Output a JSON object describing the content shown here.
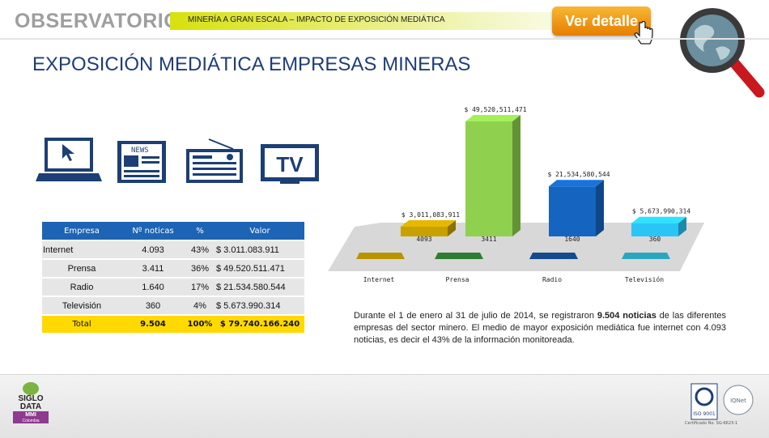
{
  "header": {
    "brand": "OBSERVATORIO",
    "subtitle": "MINERÍA A GRAN ESCALA – IMPACTO DE EXPOSICIÓN MEDIÁTICA",
    "detail_button": "Ver detalle"
  },
  "page_title": "EXPOSICIÓN MEDIÁTICA EMPRESAS MINERAS",
  "icons": [
    "laptop-icon",
    "newspaper-icon",
    "radio-icon",
    "tv-icon",
    "globe-magnifier-icon"
  ],
  "icon_labels": {
    "news": "NEWS",
    "tv": "TV"
  },
  "table": {
    "headers": [
      "Empresa",
      "Nº noticas",
      "%",
      "Valor"
    ],
    "rows": [
      {
        "empresa": "Internet",
        "noticias": "4.093",
        "pct": "43%",
        "valor": "$ 3.011.083.911"
      },
      {
        "empresa": "Prensa",
        "noticias": "3.411",
        "pct": "36%",
        "valor": "$ 49.520.511.471"
      },
      {
        "empresa": "Radio",
        "noticias": "1.640",
        "pct": "17%",
        "valor": "$ 21.534.580.544"
      },
      {
        "empresa": "Televisión",
        "noticias": "360",
        "pct": "4%",
        "valor": "$ 5.673.990.314"
      }
    ],
    "total": {
      "empresa": "Total",
      "noticias": "9.504",
      "pct": "100%",
      "valor": "$ 79.740.166.240"
    }
  },
  "chart_data": {
    "type": "bar",
    "categories": [
      "Internet",
      "Prensa",
      "Radio",
      "Televisión"
    ],
    "values": [
      3011083911,
      49520511471,
      21534580544,
      5673990314
    ],
    "value_labels": [
      "$ 3,011,083,911",
      "$ 49,520,511,471",
      "$ 21,534,580,544",
      "$ 5,673,990,314"
    ],
    "count_labels": [
      "4093",
      "3411",
      "1640",
      "360"
    ],
    "colors": [
      "#c8a000",
      "#8fd14f",
      "#1565c0",
      "#29c5f6"
    ],
    "base_colors": [
      "#b89400",
      "#2e7d32",
      "#154a8c",
      "#2aa7bf"
    ],
    "title": "",
    "xlabel": "",
    "ylabel": "",
    "grid": false
  },
  "summary": {
    "part1": "Durante el 1 de enero al 31 de julio de 2014, se registraron ",
    "highlight": "9.504 noticias",
    "part2": " de las diferentes empresas del sector minero. El medio de mayor exposición mediática fue internet con 4.093 noticias, es decir el 43% de la información monitoreada."
  },
  "footer": {
    "logo_lines": [
      "SIGLO",
      "DATA",
      "MMI",
      "Colombia"
    ],
    "cert": [
      "ISO 9001",
      "IQNet"
    ],
    "cert_label": "Certificado No. SG-6623-1"
  },
  "colors": {
    "title": "#1f3d7a",
    "table_header": "#1e64b4",
    "total_row": "#ffd900",
    "accent_button": "#f0a020"
  }
}
